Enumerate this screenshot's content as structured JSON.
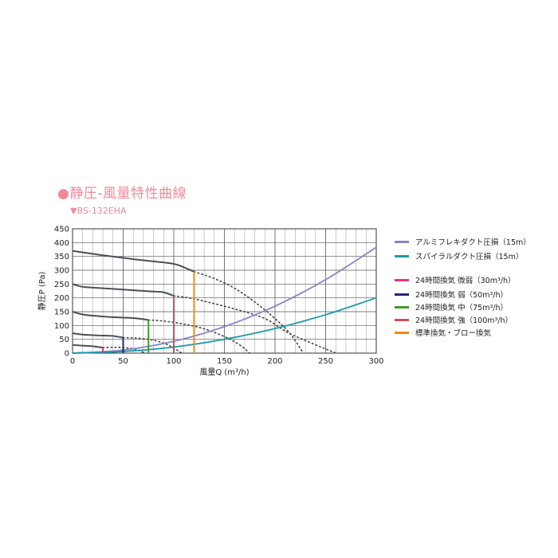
{
  "title": "●静圧-風量特性曲線",
  "subtitle": "▼BS-132EHA",
  "chart_data": {
    "type": "line",
    "xlabel": "風量Q (m³/h)",
    "ylabel": "静圧P (Pa)",
    "xlim": [
      0,
      300
    ],
    "ylim": [
      0,
      450
    ],
    "xticks": [
      0,
      50,
      100,
      150,
      200,
      250,
      300
    ],
    "yticks": [
      0,
      50,
      100,
      150,
      200,
      250,
      300,
      350,
      400,
      450
    ],
    "grid": true,
    "legend_position": "right",
    "fan_curves": [
      {
        "solid": [
          [
            0,
            370
          ],
          [
            15,
            362
          ],
          [
            30,
            354
          ],
          [
            50,
            345
          ],
          [
            65,
            338
          ],
          [
            80,
            332
          ],
          [
            95,
            326
          ],
          [
            105,
            318
          ],
          [
            120,
            295
          ]
        ],
        "dotted": [
          [
            120,
            295
          ],
          [
            140,
            270
          ],
          [
            160,
            235
          ],
          [
            180,
            185
          ],
          [
            200,
            125
          ],
          [
            215,
            70
          ],
          [
            228,
            0
          ]
        ]
      },
      {
        "solid": [
          [
            0,
            250
          ],
          [
            10,
            240
          ],
          [
            25,
            236
          ],
          [
            50,
            230
          ],
          [
            75,
            224
          ],
          [
            90,
            220
          ],
          [
            100,
            207
          ]
        ],
        "dotted": [
          [
            100,
            207
          ],
          [
            115,
            200
          ],
          [
            130,
            188
          ],
          [
            160,
            160
          ],
          [
            190,
            125
          ],
          [
            215,
            70
          ],
          [
            260,
            0
          ]
        ]
      },
      {
        "solid": [
          [
            0,
            150
          ],
          [
            10,
            140
          ],
          [
            25,
            134
          ],
          [
            40,
            130
          ],
          [
            55,
            128
          ],
          [
            65,
            125
          ],
          [
            75,
            120
          ]
        ],
        "dotted": [
          [
            75,
            120
          ],
          [
            90,
            116
          ],
          [
            110,
            105
          ],
          [
            130,
            88
          ],
          [
            150,
            60
          ],
          [
            165,
            30
          ],
          [
            175,
            0
          ]
        ]
      },
      {
        "solid": [
          [
            0,
            72
          ],
          [
            10,
            67
          ],
          [
            25,
            64
          ],
          [
            40,
            62
          ],
          [
            50,
            56
          ]
        ],
        "dotted": [
          [
            50,
            56
          ],
          [
            60,
            55
          ],
          [
            75,
            50
          ],
          [
            85,
            42
          ],
          [
            95,
            28
          ],
          [
            108,
            0
          ]
        ]
      },
      {
        "solid": [
          [
            0,
            30
          ],
          [
            10,
            27
          ],
          [
            20,
            25
          ],
          [
            30,
            20
          ]
        ],
        "dotted": [
          [
            30,
            20
          ],
          [
            40,
            21
          ],
          [
            50,
            20
          ],
          [
            60,
            16
          ],
          [
            65,
            10
          ],
          [
            72,
            0
          ]
        ]
      }
    ],
    "series": [
      {
        "name": "アルミフレキダクト圧損（15m）",
        "color": "#8b84c7",
        "points": [
          [
            0,
            0
          ],
          [
            50,
            11
          ],
          [
            100,
            43
          ],
          [
            150,
            96
          ],
          [
            200,
            170
          ],
          [
            250,
            266
          ],
          [
            300,
            383
          ]
        ]
      },
      {
        "name": "スパイラルダクト圧損（15m）",
        "color": "#1a9aa8",
        "points": [
          [
            0,
            0
          ],
          [
            50,
            6
          ],
          [
            100,
            22
          ],
          [
            150,
            50
          ],
          [
            200,
            89
          ],
          [
            250,
            139
          ],
          [
            300,
            200
          ]
        ]
      }
    ],
    "operating_points": [
      {
        "name": "24時間換気 微弱（30m³/h）",
        "color": "#e0358e",
        "x": 30,
        "y": 20
      },
      {
        "name": "24時間換気 弱（50m³/h）",
        "color": "#1f2a6e",
        "x": 50,
        "y": 56
      },
      {
        "name": "24時間換気 中（75m³/h）",
        "color": "#3f9a2e",
        "x": 75,
        "y": 120
      },
      {
        "name": "24時間換気 強（100m³/h）",
        "color": "#c7505a",
        "x": 100,
        "y": 207
      },
      {
        "name": "標準換気・ブロー換気",
        "color": "#f08a1c",
        "x": 120,
        "y": 295
      }
    ]
  }
}
